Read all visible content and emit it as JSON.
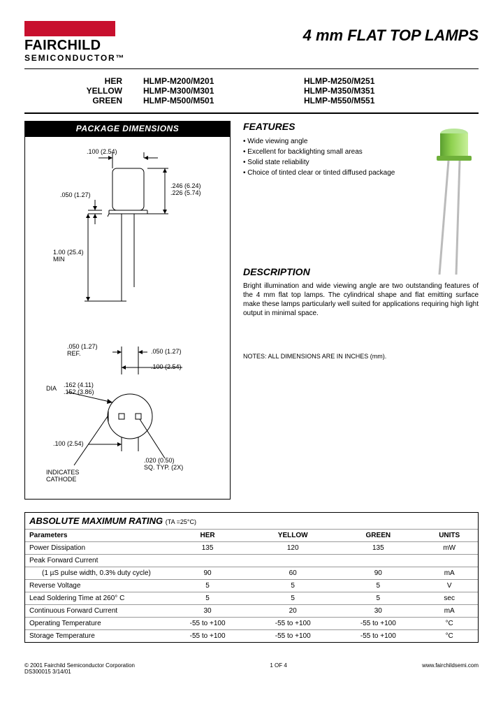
{
  "logo": {
    "brand": "FAIRCHILD",
    "sub1": "SEMICONDUCTOR",
    "tm": "™"
  },
  "title": "4 mm FLAT TOP LAMPS",
  "parts": {
    "colors": [
      "HER",
      "YELLOW",
      "GREEN"
    ],
    "col2": [
      "HLMP-M200/M201",
      "HLMP-M300/M301",
      "HLMP-M500/M501"
    ],
    "col3": [
      "HLMP-M250/M251",
      "HLMP-M350/M351",
      "HLMP-M550/M551"
    ]
  },
  "pkg": {
    "header": "PACKAGE DIMENSIONS",
    "d1": ".100 (2.54)",
    "d2": ".050 (1.27)",
    "d3": ".246 (6.24)",
    "d3b": ".226 (5.74)",
    "d4": "1.00 (25.4)",
    "d4b": "MIN",
    "d5": ".050 (1.27)",
    "d5b": "REF.",
    "d6": ".050 (1.27)",
    "d7": ".100 (2.54)",
    "d8": "DIA",
    "d8a": ".162 (4.11)",
    "d8b": ".152 (3.86)",
    "d9": ".100 (2.54)",
    "d10": ".020 (0.50)",
    "d10b": "SQ. TYP. (2X)",
    "d11": "INDICATES",
    "d11b": "CATHODE"
  },
  "features": {
    "head": "FEATURES",
    "items": [
      "Wide viewing angle",
      "Excellent for backlighting small areas",
      "Solid state reliability",
      "Choice of tinted clear or tinted diffused package"
    ]
  },
  "description": {
    "head": "DESCRIPTION",
    "text": "Bright illumination and wide viewing angle are two outstanding features of the 4 mm flat top lamps. The cylindrical shape and flat emitting surface make these lamps particularly well suited for applications requiring high light output in minimal space."
  },
  "notes": "NOTES: ALL DIMENSIONS ARE IN INCHES (mm).",
  "rating": {
    "title": "ABSOLUTE MAXIMUM RATING",
    "cond": "(TA =25°C)",
    "columns": [
      "Parameters",
      "HER",
      "YELLOW",
      "GREEN",
      "UNITS"
    ],
    "rows": [
      [
        "Power Dissipation",
        "135",
        "120",
        "135",
        "mW"
      ],
      [
        "Peak Forward Current",
        "",
        "",
        "",
        ""
      ],
      [
        "(1 µS pulse width, 0.3% duty cycle)",
        "90",
        "60",
        "90",
        "mA"
      ],
      [
        "Reverse Voltage",
        "5",
        "5",
        "5",
        "V"
      ],
      [
        "Lead Soldering Time at 260° C",
        "5",
        "5",
        "5",
        "sec"
      ],
      [
        "Continuous Forward Current",
        "30",
        "20",
        "30",
        "mA"
      ],
      [
        "Operating Temperature",
        "-55 to +100",
        "-55 to +100",
        "-55 to +100",
        "°C"
      ],
      [
        "Storage Temperature",
        "-55 to +100",
        "-55 to +100",
        "-55 to +100",
        "°C"
      ]
    ],
    "indent_rows": [
      2
    ]
  },
  "footer": {
    "left1": "© 2001 Fairchild Semiconductor Corporation",
    "left2": "DS300015    3/14/01",
    "mid": "1 OF 4",
    "right": "www.fairchildsemi.com"
  },
  "led_colors": {
    "body": "#7bc043",
    "body_light": "#a8e063",
    "lead": "#bbbbbb"
  }
}
